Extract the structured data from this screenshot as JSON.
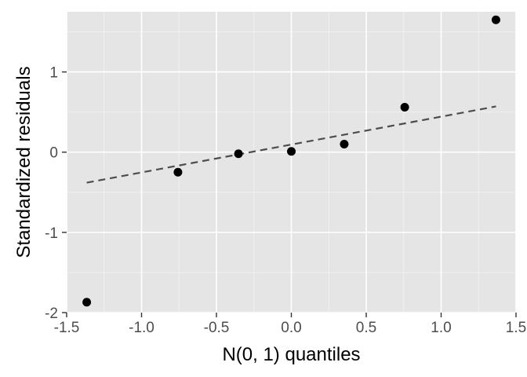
{
  "chart_data": {
    "type": "scatter",
    "title": "",
    "xlabel": "N(0, 1) quantiles",
    "ylabel": "Standardized residuals",
    "xlim": [
      -1.5,
      1.5
    ],
    "ylim": [
      -2.0,
      1.75
    ],
    "x_ticks": [
      -1.5,
      -1.0,
      -0.5,
      0.0,
      0.5,
      1.0,
      1.5
    ],
    "x_tick_labels": [
      "-1.5",
      "-1.0",
      "-0.5",
      "0.0",
      "0.5",
      "1.0",
      "1.5"
    ],
    "y_ticks": [
      -2,
      -1,
      0,
      1
    ],
    "y_tick_labels": [
      "-2",
      "-1",
      "0",
      "1"
    ],
    "grid": true,
    "points": [
      {
        "x": -1.366,
        "y": -1.87
      },
      {
        "x": -0.757,
        "y": -0.25
      },
      {
        "x": -0.353,
        "y": -0.02
      },
      {
        "x": 0.0,
        "y": 0.01
      },
      {
        "x": 0.353,
        "y": 0.1
      },
      {
        "x": 0.757,
        "y": 0.56
      },
      {
        "x": 1.366,
        "y": 1.65
      }
    ],
    "reference_line": {
      "style": "dashed",
      "x": [
        -1.366,
        1.366
      ],
      "y": [
        -0.38,
        0.57
      ]
    },
    "colors": {
      "panel": "#e5e5e5",
      "points": "#000000",
      "reference_line": "#4d4d4d"
    }
  }
}
